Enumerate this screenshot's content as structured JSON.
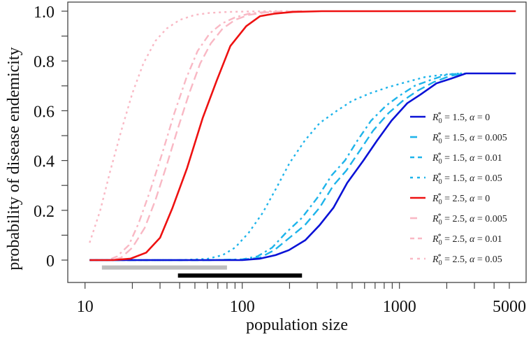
{
  "chart_data": {
    "type": "line",
    "title": "",
    "xlabel": "population size",
    "ylabel": "probability of disease endemicity",
    "xscale": "log",
    "xlim": [
      8.2,
      5600
    ],
    "ylim": [
      -0.09,
      1.04
    ],
    "xticks": [
      10,
      100,
      1000,
      5000
    ],
    "xtick_labels": [
      "10",
      "100",
      "1000",
      "5000"
    ],
    "x_minor_ticks": [
      20,
      30,
      40,
      50,
      60,
      70,
      80,
      90,
      200,
      300,
      400,
      500,
      600,
      700,
      800,
      900,
      2000,
      3000,
      4000
    ],
    "yticks": [
      0,
      0.2,
      0.4,
      0.6,
      0.8,
      1.0
    ],
    "ytick_labels": [
      "0",
      "0.2",
      "0.4",
      "0.6",
      "0.8",
      "1.0"
    ],
    "y_minor_ticks": [
      0.1,
      0.3,
      0.5,
      0.7,
      0.9
    ],
    "grid": false,
    "legend_position": "center-right",
    "series": [
      {
        "name": "R0*=1.5, α=0",
        "legend": {
          "r": "1.5",
          "alpha": "0"
        },
        "color": "#0a12d6",
        "style": "solid",
        "x": [
          10.7,
          50,
          100,
          130,
          163,
          198,
          252,
          310,
          380,
          465,
          590,
          720,
          890,
          1120,
          1360,
          1720,
          2150,
          2650,
          5500
        ],
        "y": [
          0,
          0,
          0,
          0.006,
          0.02,
          0.04,
          0.08,
          0.14,
          0.21,
          0.31,
          0.4,
          0.48,
          0.56,
          0.63,
          0.665,
          0.71,
          0.73,
          0.75,
          0.75
        ]
      },
      {
        "name": "R0*=1.5, α=0.005",
        "legend": {
          "r": "1.5",
          "alpha": "0.005"
        },
        "color": "#1eb4ea",
        "style": "longdash",
        "x": [
          10.7,
          60,
          100,
          130,
          160,
          200,
          250,
          310,
          380,
          460,
          560,
          680,
          850,
          1050,
          1300,
          1650,
          2100,
          2600
        ],
        "y": [
          0,
          0,
          0.002,
          0.01,
          0.04,
          0.09,
          0.14,
          0.21,
          0.3,
          0.36,
          0.44,
          0.52,
          0.59,
          0.64,
          0.68,
          0.715,
          0.74,
          0.75
        ]
      },
      {
        "name": "R0*=1.5, α=0.01",
        "legend": {
          "r": "1.5",
          "alpha": "0.01"
        },
        "color": "#1eb4ea",
        "style": "dashdot",
        "x": [
          10.7,
          60,
          100,
          125,
          155,
          190,
          240,
          300,
          370,
          450,
          540,
          660,
          820,
          1000,
          1250,
          1600,
          2000,
          2500
        ],
        "y": [
          0,
          0,
          0.003,
          0.015,
          0.05,
          0.11,
          0.17,
          0.25,
          0.34,
          0.4,
          0.48,
          0.56,
          0.62,
          0.66,
          0.7,
          0.725,
          0.745,
          0.75
        ]
      },
      {
        "name": "R0*=1.5, α=0.05",
        "legend": {
          "r": "1.5",
          "alpha": "0.05"
        },
        "color": "#1eb4ea",
        "style": "dotted",
        "x": [
          10.7,
          40,
          60,
          75,
          90,
          110,
          135,
          165,
          200,
          250,
          310,
          400,
          500,
          650,
          850,
          1100,
          1450,
          1900,
          2400
        ],
        "y": [
          0,
          0,
          0.005,
          0.02,
          0.05,
          0.11,
          0.19,
          0.29,
          0.39,
          0.48,
          0.55,
          0.6,
          0.64,
          0.67,
          0.695,
          0.715,
          0.735,
          0.745,
          0.75
        ]
      },
      {
        "name": "R0*=2.5, α=0",
        "legend": {
          "r": "2.5",
          "alpha": "0"
        },
        "color": "#ee1111",
        "style": "solid",
        "x": [
          10.7,
          15,
          19.5,
          24.5,
          30,
          36,
          44.6,
          56,
          68.7,
          84,
          106,
          130,
          160,
          210,
          320,
          5500
        ],
        "y": [
          0,
          0,
          0.006,
          0.03,
          0.09,
          0.21,
          0.37,
          0.57,
          0.72,
          0.86,
          0.94,
          0.98,
          0.99,
          0.997,
          1.0,
          1.0
        ]
      },
      {
        "name": "R0*=2.5, α=0.005",
        "legend": {
          "r": "2.5",
          "alpha": "0.005"
        },
        "color": "#f9b8c4",
        "style": "longdash",
        "x": [
          10.7,
          15,
          17,
          20,
          24,
          28,
          33,
          39,
          46,
          54,
          63,
          75,
          90,
          110,
          140,
          180,
          240
        ],
        "y": [
          0,
          0,
          0.01,
          0.05,
          0.13,
          0.24,
          0.38,
          0.53,
          0.67,
          0.79,
          0.87,
          0.93,
          0.965,
          0.985,
          0.995,
          0.999,
          1.0
        ]
      },
      {
        "name": "R0*=2.5, α=0.01",
        "legend": {
          "r": "2.5",
          "alpha": "0.01"
        },
        "color": "#f9b8c4",
        "style": "dashdot",
        "x": [
          10.7,
          14,
          16,
          19,
          22,
          26,
          31,
          37,
          44,
          52,
          62,
          74,
          90,
          110,
          140,
          180,
          230
        ],
        "y": [
          0,
          0,
          0.015,
          0.06,
          0.15,
          0.28,
          0.43,
          0.59,
          0.73,
          0.84,
          0.91,
          0.95,
          0.975,
          0.99,
          0.997,
          0.999,
          1.0
        ]
      },
      {
        "name": "R0*=2.5, α=0.05",
        "legend": {
          "r": "2.5",
          "alpha": "0.05"
        },
        "color": "#f9b8c4",
        "style": "dotted",
        "x": [
          10.7,
          12.5,
          14.5,
          17,
          20,
          23.5,
          28,
          33,
          40,
          50,
          62,
          80,
          110,
          160,
          230
        ],
        "y": [
          0.07,
          0.2,
          0.36,
          0.52,
          0.67,
          0.79,
          0.88,
          0.93,
          0.965,
          0.985,
          0.993,
          0.997,
          0.999,
          1.0,
          1.0
        ]
      }
    ],
    "range_bars": [
      {
        "name": "grey-range-bar",
        "color": "#bdbdbd",
        "x_start": 12.8,
        "x_end": 80,
        "y": -0.03
      },
      {
        "name": "black-range-bar",
        "color": "#000000",
        "x_start": 39,
        "x_end": 240,
        "y": -0.062
      }
    ]
  }
}
